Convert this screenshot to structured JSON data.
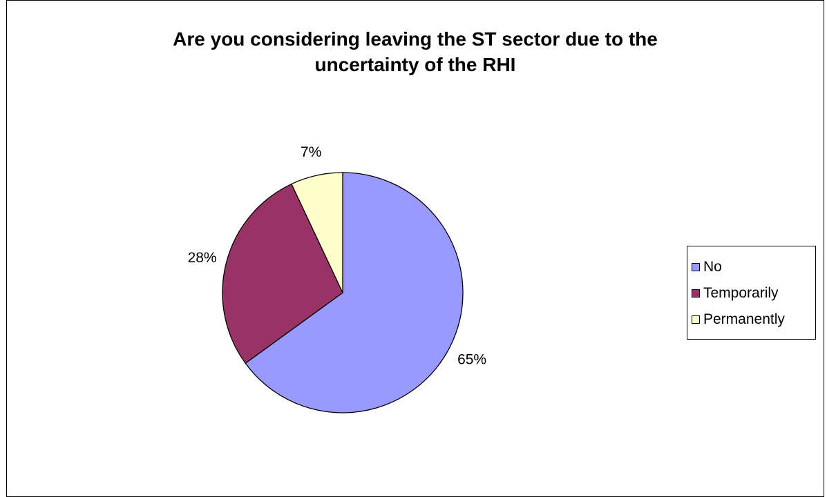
{
  "chart_data": {
    "type": "pie",
    "title": [
      "Are you considering leaving the ST sector due to the",
      "uncertainty of the RHI"
    ],
    "categories": [
      "No",
      "Temporarily",
      "Permanently"
    ],
    "values": [
      65,
      28,
      7
    ],
    "data_labels": [
      "65%",
      "28%",
      "7%"
    ],
    "colors": [
      "#9999FF",
      "#993366",
      "#FFFFCC"
    ],
    "legend_position": "right"
  }
}
